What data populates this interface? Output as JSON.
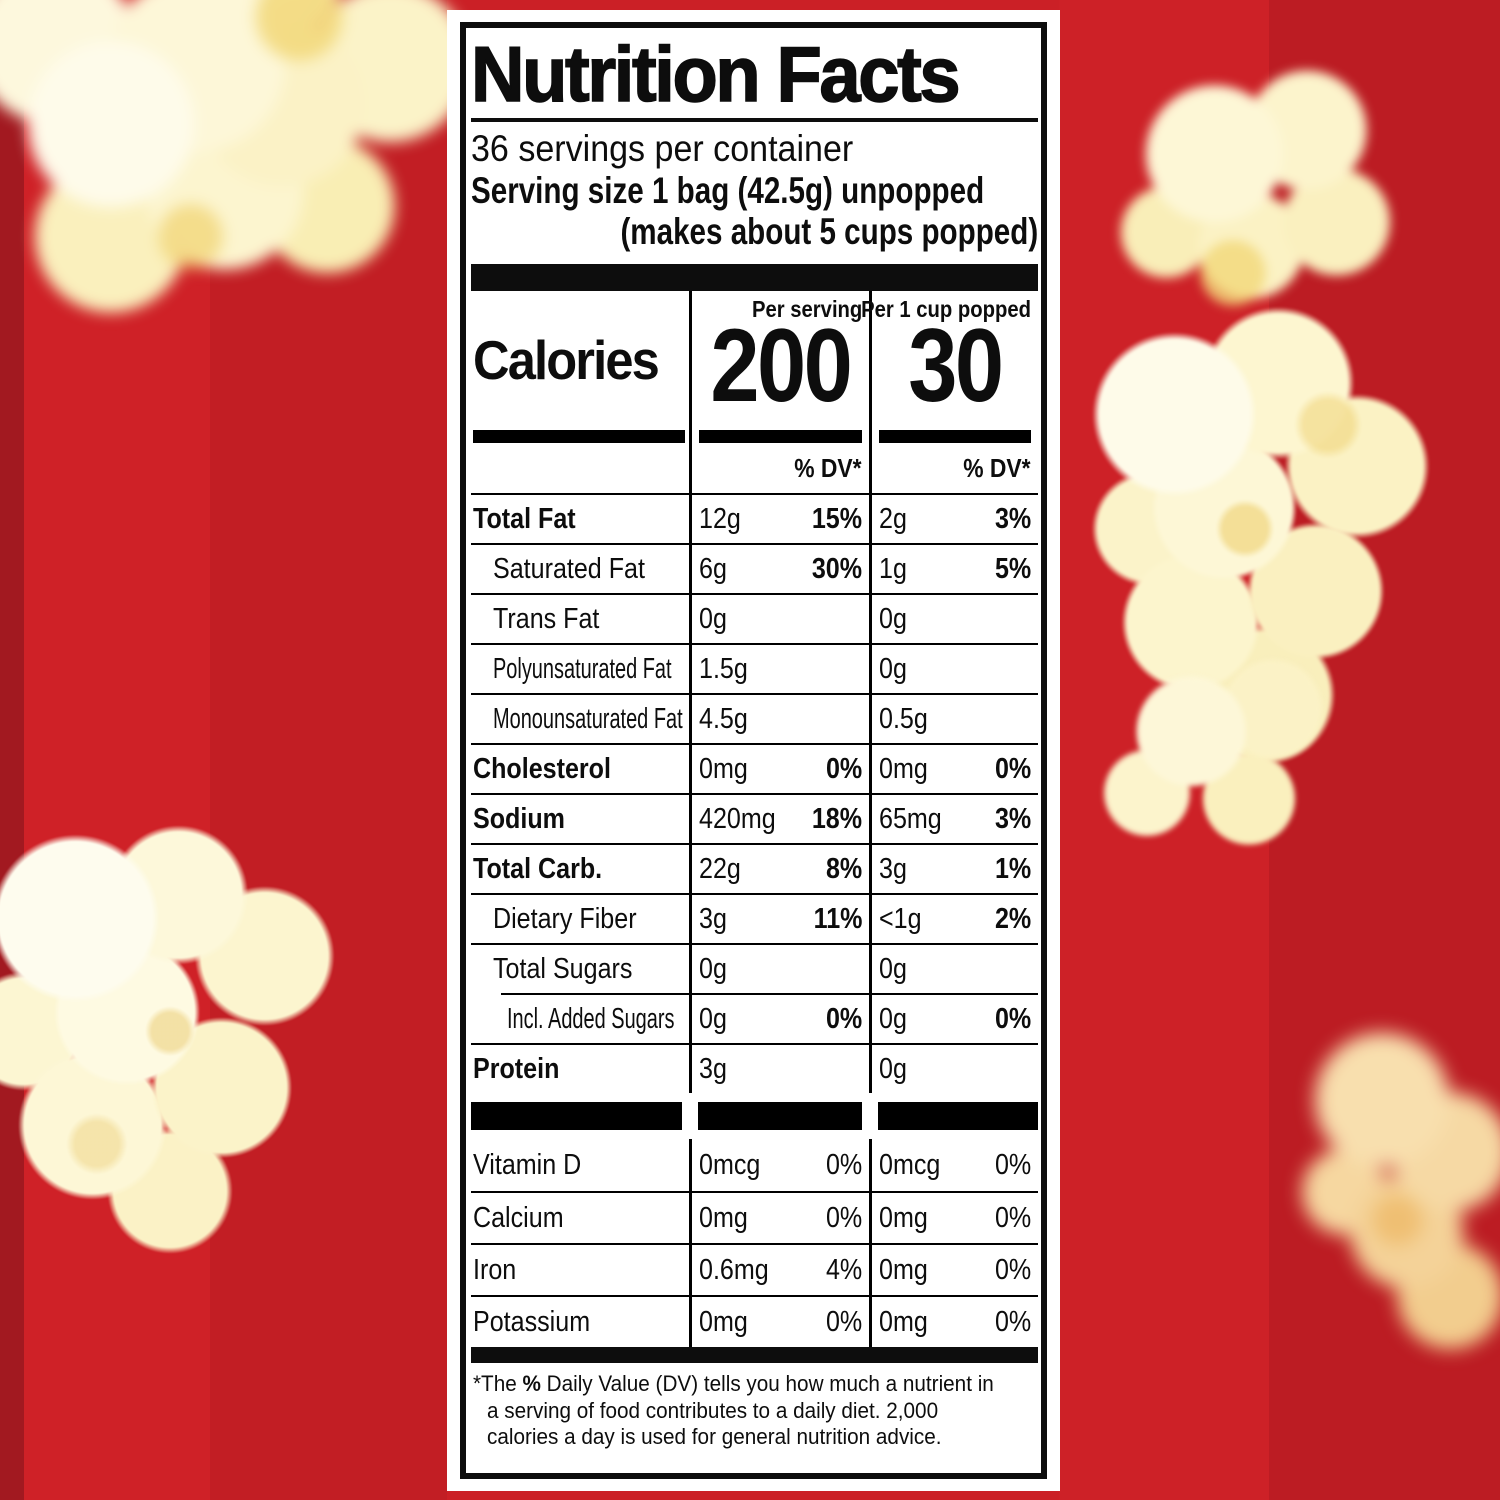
{
  "background": {
    "base_color": "#cb2026",
    "popcorn_color": "#fdf7d6"
  },
  "label": {
    "title": "Nutrition Facts",
    "servings_per_container": "36 servings per container",
    "serving_size": "Serving size 1 bag (42.5g) unpopped",
    "serving_size_note": "(makes about 5 cups popped)",
    "calories": {
      "label": "Calories",
      "col1_header": "Per serving",
      "col1_value": "200",
      "col2_header": "Per 1 cup popped",
      "col2_value": "30"
    },
    "dv_header": "% DV*",
    "nutrients": [
      {
        "label": "Total Fat",
        "indent": 0,
        "bold": true,
        "narrow": false,
        "s_amt": "12g",
        "s_dv": "15%",
        "c_amt": "2g",
        "c_dv": "3%"
      },
      {
        "label": "Saturated Fat",
        "indent": 1,
        "bold": false,
        "narrow": false,
        "s_amt": "6g",
        "s_dv": "30%",
        "c_amt": "1g",
        "c_dv": "5%"
      },
      {
        "label": "Trans Fat",
        "indent": 1,
        "bold": false,
        "narrow": false,
        "s_amt": "0g",
        "s_dv": "",
        "c_amt": "0g",
        "c_dv": ""
      },
      {
        "label": "Polyunsaturated Fat",
        "indent": 1,
        "bold": false,
        "narrow": true,
        "s_amt": "1.5g",
        "s_dv": "",
        "c_amt": "0g",
        "c_dv": ""
      },
      {
        "label": "Monounsaturated Fat",
        "indent": 1,
        "bold": false,
        "narrow": true,
        "s_amt": "4.5g",
        "s_dv": "",
        "c_amt": "0.5g",
        "c_dv": ""
      },
      {
        "label": "Cholesterol",
        "indent": 0,
        "bold": true,
        "narrow": false,
        "s_amt": "0mg",
        "s_dv": "0%",
        "c_amt": "0mg",
        "c_dv": "0%"
      },
      {
        "label": "Sodium",
        "indent": 0,
        "bold": true,
        "narrow": false,
        "s_amt": "420mg",
        "s_dv": "18%",
        "c_amt": "65mg",
        "c_dv": "3%"
      },
      {
        "label": "Total Carb.",
        "indent": 0,
        "bold": true,
        "narrow": false,
        "s_amt": "22g",
        "s_dv": "8%",
        "c_amt": "3g",
        "c_dv": "1%"
      },
      {
        "label": "Dietary Fiber",
        "indent": 1,
        "bold": false,
        "narrow": false,
        "s_amt": "3g",
        "s_dv": "11%",
        "c_amt": "<1g",
        "c_dv": "2%"
      },
      {
        "label": "Total Sugars",
        "indent": 1,
        "bold": false,
        "narrow": false,
        "s_amt": "0g",
        "s_dv": "",
        "c_amt": "0g",
        "c_dv": ""
      },
      {
        "label": "Incl. Added Sugars",
        "indent": 2,
        "bold": false,
        "narrow": true,
        "s_amt": "0g",
        "s_dv": "0%",
        "c_amt": "0g",
        "c_dv": "0%"
      },
      {
        "label": "Protein",
        "indent": 0,
        "bold": true,
        "narrow": false,
        "s_amt": "3g",
        "s_dv": "",
        "c_amt": "0g",
        "c_dv": ""
      }
    ],
    "vitamins": [
      {
        "label": "Vitamin D",
        "s_amt": "0mcg",
        "s_dv": "0%",
        "c_amt": "0mcg",
        "c_dv": "0%"
      },
      {
        "label": "Calcium",
        "s_amt": "0mg",
        "s_dv": "0%",
        "c_amt": "0mg",
        "c_dv": "0%"
      },
      {
        "label": "Iron",
        "s_amt": "0.6mg",
        "s_dv": "4%",
        "c_amt": "0mg",
        "c_dv": "0%"
      },
      {
        "label": "Potassium",
        "s_amt": "0mg",
        "s_dv": "0%",
        "c_amt": "0mg",
        "c_dv": "0%"
      }
    ],
    "footnote": {
      "line1_pre": "*The ",
      "line1_bold": "%",
      "line1_post": " Daily Value (DV) tells you how much a nutrient in",
      "line2": "a serving of food contributes to a daily diet. 2,000",
      "line3": "calories a day is used for general nutrition advice."
    }
  }
}
